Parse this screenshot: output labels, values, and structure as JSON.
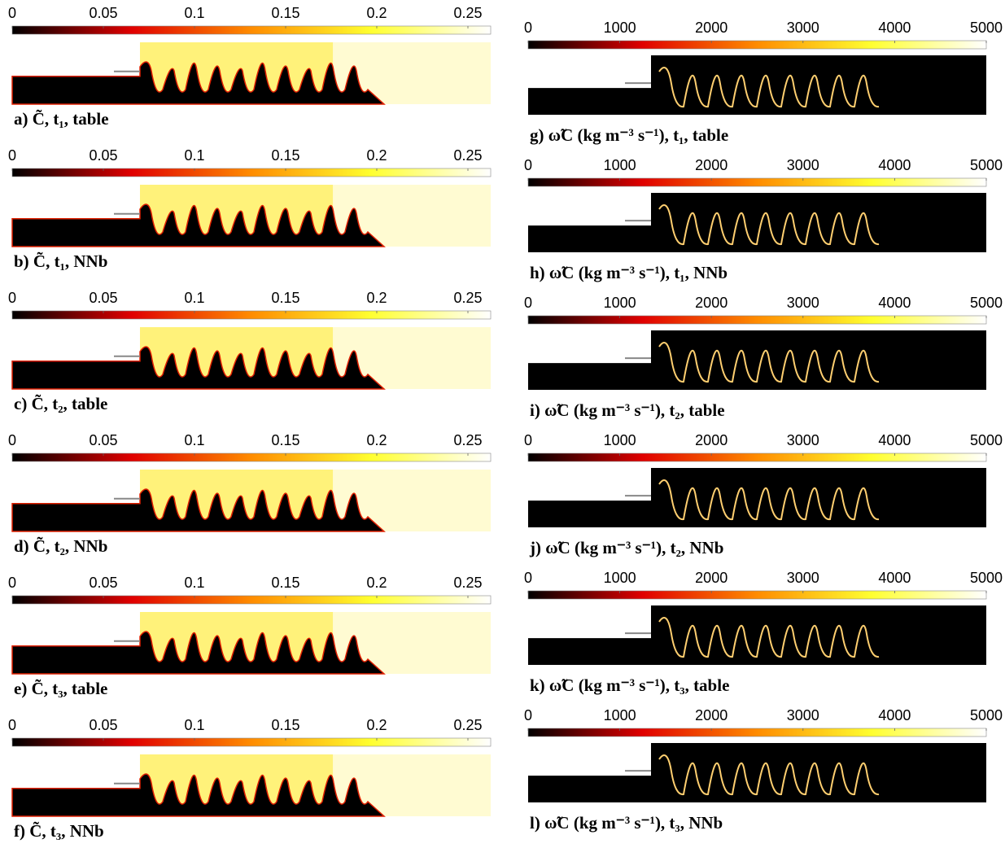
{
  "chart_data": [
    {
      "type": "heatmap",
      "title": "a) C̃, t₁, table",
      "zlim": [
        0,
        0.2625
      ],
      "zticks": [
        0,
        0.05,
        0.1,
        0.15,
        0.2,
        0.25
      ],
      "colormap": [
        "#000000",
        "#e00000",
        "#ff8c00",
        "#ffff30",
        "#ffffff"
      ]
    },
    {
      "type": "heatmap",
      "title": "b) C̃, t₁, NNb",
      "zlim": [
        0,
        0.2625
      ],
      "zticks": [
        0,
        0.05,
        0.1,
        0.15,
        0.2,
        0.25
      ],
      "colormap": [
        "#000000",
        "#e00000",
        "#ff8c00",
        "#ffff30",
        "#ffffff"
      ]
    },
    {
      "type": "heatmap",
      "title": "c) C̃, t₂, table",
      "zlim": [
        0,
        0.2625
      ],
      "zticks": [
        0,
        0.05,
        0.1,
        0.15,
        0.2,
        0.25
      ],
      "colormap": [
        "#000000",
        "#e00000",
        "#ff8c00",
        "#ffff30",
        "#ffffff"
      ]
    },
    {
      "type": "heatmap",
      "title": "d) C̃, t₂, NNb",
      "zlim": [
        0,
        0.2625
      ],
      "zticks": [
        0,
        0.05,
        0.1,
        0.15,
        0.2,
        0.25
      ],
      "colormap": [
        "#000000",
        "#e00000",
        "#ff8c00",
        "#ffff30",
        "#ffffff"
      ]
    },
    {
      "type": "heatmap",
      "title": "e) C̃, t₃, table",
      "zlim": [
        0,
        0.2625
      ],
      "zticks": [
        0,
        0.05,
        0.1,
        0.15,
        0.2,
        0.25
      ],
      "colormap": [
        "#000000",
        "#e00000",
        "#ff8c00",
        "#ffff30",
        "#ffffff"
      ]
    },
    {
      "type": "heatmap",
      "title": "f) C̃, t₃, NNb",
      "zlim": [
        0,
        0.2625
      ],
      "zticks": [
        0,
        0.05,
        0.1,
        0.15,
        0.2,
        0.25
      ],
      "colormap": [
        "#000000",
        "#e00000",
        "#ff8c00",
        "#ffff30",
        "#ffffff"
      ]
    },
    {
      "type": "heatmap",
      "title": "g) ω̃C (kg m⁻³ s⁻¹), t₁, table",
      "zlim": [
        0,
        5000
      ],
      "zticks": [
        0,
        1000,
        2000,
        3000,
        4000,
        5000
      ],
      "colormap": [
        "#000000",
        "#e00000",
        "#ff8c00",
        "#ffff30",
        "#ffffff"
      ]
    },
    {
      "type": "heatmap",
      "title": "h) ω̃C (kg m⁻³ s⁻¹), t₁, NNb",
      "zlim": [
        0,
        5000
      ],
      "zticks": [
        0,
        1000,
        2000,
        3000,
        4000,
        5000
      ],
      "colormap": [
        "#000000",
        "#e00000",
        "#ff8c00",
        "#ffff30",
        "#ffffff"
      ]
    },
    {
      "type": "heatmap",
      "title": "i) ω̃C (kg m⁻³ s⁻¹), t₂, table",
      "zlim": [
        0,
        5000
      ],
      "zticks": [
        0,
        1000,
        2000,
        3000,
        4000,
        5000
      ],
      "colormap": [
        "#000000",
        "#e00000",
        "#ff8c00",
        "#ffff30",
        "#ffffff"
      ]
    },
    {
      "type": "heatmap",
      "title": "j) ω̃C (kg m⁻³ s⁻¹), t₂, NNb",
      "zlim": [
        0,
        5000
      ],
      "zticks": [
        0,
        1000,
        2000,
        3000,
        4000,
        5000
      ],
      "colormap": [
        "#000000",
        "#e00000",
        "#ff8c00",
        "#ffff30",
        "#ffffff"
      ]
    },
    {
      "type": "heatmap",
      "title": "k) ω̃C (kg m⁻³ s⁻¹), t₃, table",
      "zlim": [
        0,
        5000
      ],
      "zticks": [
        0,
        1000,
        2000,
        3000,
        4000,
        5000
      ],
      "colormap": [
        "#000000",
        "#e00000",
        "#ff8c00",
        "#ffff30",
        "#ffffff"
      ]
    },
    {
      "type": "heatmap",
      "title": "l) ω̃C (kg m⁻³ s⁻¹), t₃, NNb",
      "zlim": [
        0,
        5000
      ],
      "zticks": [
        0,
        1000,
        2000,
        3000,
        4000,
        5000
      ],
      "colormap": [
        "#000000",
        "#e00000",
        "#ff8c00",
        "#ffff30",
        "#ffffff"
      ]
    }
  ]
}
